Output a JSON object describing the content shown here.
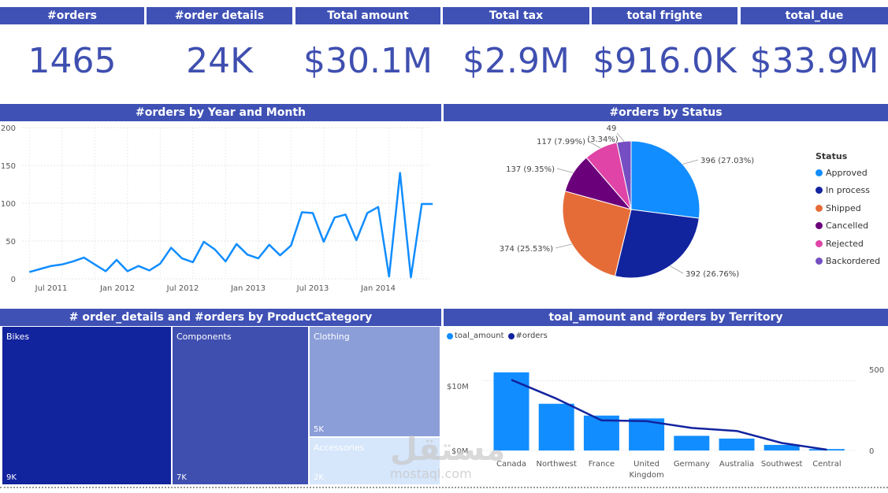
{
  "kpis": [
    {
      "title": "#orders",
      "value": "1465"
    },
    {
      "title": "#order details",
      "value": "24K"
    },
    {
      "title": "Total amount",
      "value": "$30.1M"
    },
    {
      "title": "Total tax",
      "value": "$2.9M"
    },
    {
      "title": "total frighte",
      "value": "$916.0K"
    },
    {
      "title": "total_due",
      "value": "$33.9M"
    }
  ],
  "line_chart": {
    "title": "#orders by Year and Month",
    "y_ticks": [
      "200",
      "150",
      "100",
      "50",
      "0"
    ],
    "x_ticks": [
      "Jul 2011",
      "Jan 2012",
      "Jul 2012",
      "Jan 2013",
      "Jul 2013",
      "Jan 2014"
    ]
  },
  "pie_chart": {
    "title": "#orders by Status",
    "legend_title": "Status",
    "slices": [
      {
        "name": "Approved",
        "value": 396,
        "label": "396 (27.03%)",
        "color": "#118dff"
      },
      {
        "name": "In process",
        "value": 392,
        "label": "392 (26.76%)",
        "color": "#12239e"
      },
      {
        "name": "Shipped",
        "value": 374,
        "label": "374 (25.53%)",
        "color": "#e66c37"
      },
      {
        "name": "Cancelled",
        "value": 137,
        "label": "137 (9.35%)",
        "color": "#6b007b"
      },
      {
        "name": "Rejected",
        "value": 117,
        "label": "117 (7.99%)",
        "color": "#e044a7"
      },
      {
        "name": "Backordered",
        "value": 49,
        "label_count": "49",
        "label_pct": "(3.34%)",
        "color": "#744ec2"
      }
    ]
  },
  "treemap": {
    "title": "# order_details and #orders by ProductCategory",
    "cells": [
      {
        "name": "Bikes",
        "value": "9K",
        "color": "#12239e"
      },
      {
        "name": "Components",
        "value": "7K",
        "color": "#3f4fb0"
      },
      {
        "name": "Clothing",
        "value": "5K",
        "color": "#8c9ed8"
      },
      {
        "name": "Accessories",
        "value": "2K",
        "color": "#d6e6fb"
      }
    ]
  },
  "combo_chart": {
    "title": "toal_amount and #orders by Territory",
    "legend": [
      {
        "name": "toal_amount",
        "color": "#118dff"
      },
      {
        "name": "#orders",
        "color": "#12239e"
      }
    ],
    "y_left_ticks": [
      "$10M",
      "$0M"
    ],
    "y_right_ticks": [
      "500",
      "0"
    ]
  },
  "watermark": {
    "arabic": "مستقل",
    "latin": "mostaql.com"
  },
  "chart_data": [
    {
      "type": "line",
      "title": "#orders by Year and Month",
      "x_ticks": [
        "Jul 2011",
        "Jan 2012",
        "Jul 2012",
        "Jan 2013",
        "Jul 2013",
        "Jan 2014"
      ],
      "x": [
        "2011-05",
        "2011-06",
        "2011-07",
        "2011-08",
        "2011-09",
        "2011-10",
        "2011-11",
        "2011-12",
        "2012-01",
        "2012-02",
        "2012-03",
        "2012-04",
        "2012-05",
        "2012-06",
        "2012-07",
        "2012-08",
        "2012-09",
        "2012-10",
        "2012-11",
        "2012-12",
        "2013-01",
        "2013-02",
        "2013-03",
        "2013-04",
        "2013-05",
        "2013-06",
        "2013-07",
        "2013-08",
        "2013-09",
        "2013-10",
        "2013-11",
        "2013-12",
        "2014-01",
        "2014-02",
        "2014-03",
        "2014-04",
        "2014-05",
        "2014-06"
      ],
      "values": [
        9,
        13,
        17,
        19,
        23,
        28,
        19,
        10,
        25,
        10,
        17,
        11,
        20,
        41,
        27,
        22,
        49,
        39,
        23,
        46,
        32,
        27,
        45,
        31,
        44,
        88,
        87,
        49,
        81,
        85,
        51,
        87,
        95,
        3,
        140,
        2,
        99,
        99
      ],
      "ylim": [
        0,
        200
      ],
      "grid": true
    },
    {
      "type": "pie",
      "title": "#orders by Status",
      "categories": [
        "Approved",
        "In process",
        "Shipped",
        "Cancelled",
        "Rejected",
        "Backordered"
      ],
      "values": [
        396,
        392,
        374,
        137,
        117,
        49
      ],
      "legend": "right"
    },
    {
      "type": "treemap",
      "title": "# order_details and #orders by ProductCategory",
      "categories": [
        "Bikes",
        "Components",
        "Clothing",
        "Accessories"
      ],
      "values": [
        9000,
        7000,
        5000,
        2000
      ]
    },
    {
      "type": "bar",
      "title": "toal_amount and #orders by Territory",
      "categories": [
        "Canada",
        "Northwest",
        "France",
        "United Kingdom",
        "Germany",
        "Australia",
        "Southwest",
        "Central"
      ],
      "series": [
        {
          "name": "toal_amount",
          "values": [
            11.2,
            6.7,
            5.0,
            4.6,
            2.1,
            1.7,
            0.8,
            0.2
          ]
        },
        {
          "name": "#orders",
          "values": [
            470,
            345,
            200,
            195,
            150,
            130,
            50,
            5
          ]
        }
      ],
      "ylim_left": [
        0,
        14
      ],
      "ylim_right": [
        0,
        650
      ],
      "legend": "top-left"
    }
  ]
}
